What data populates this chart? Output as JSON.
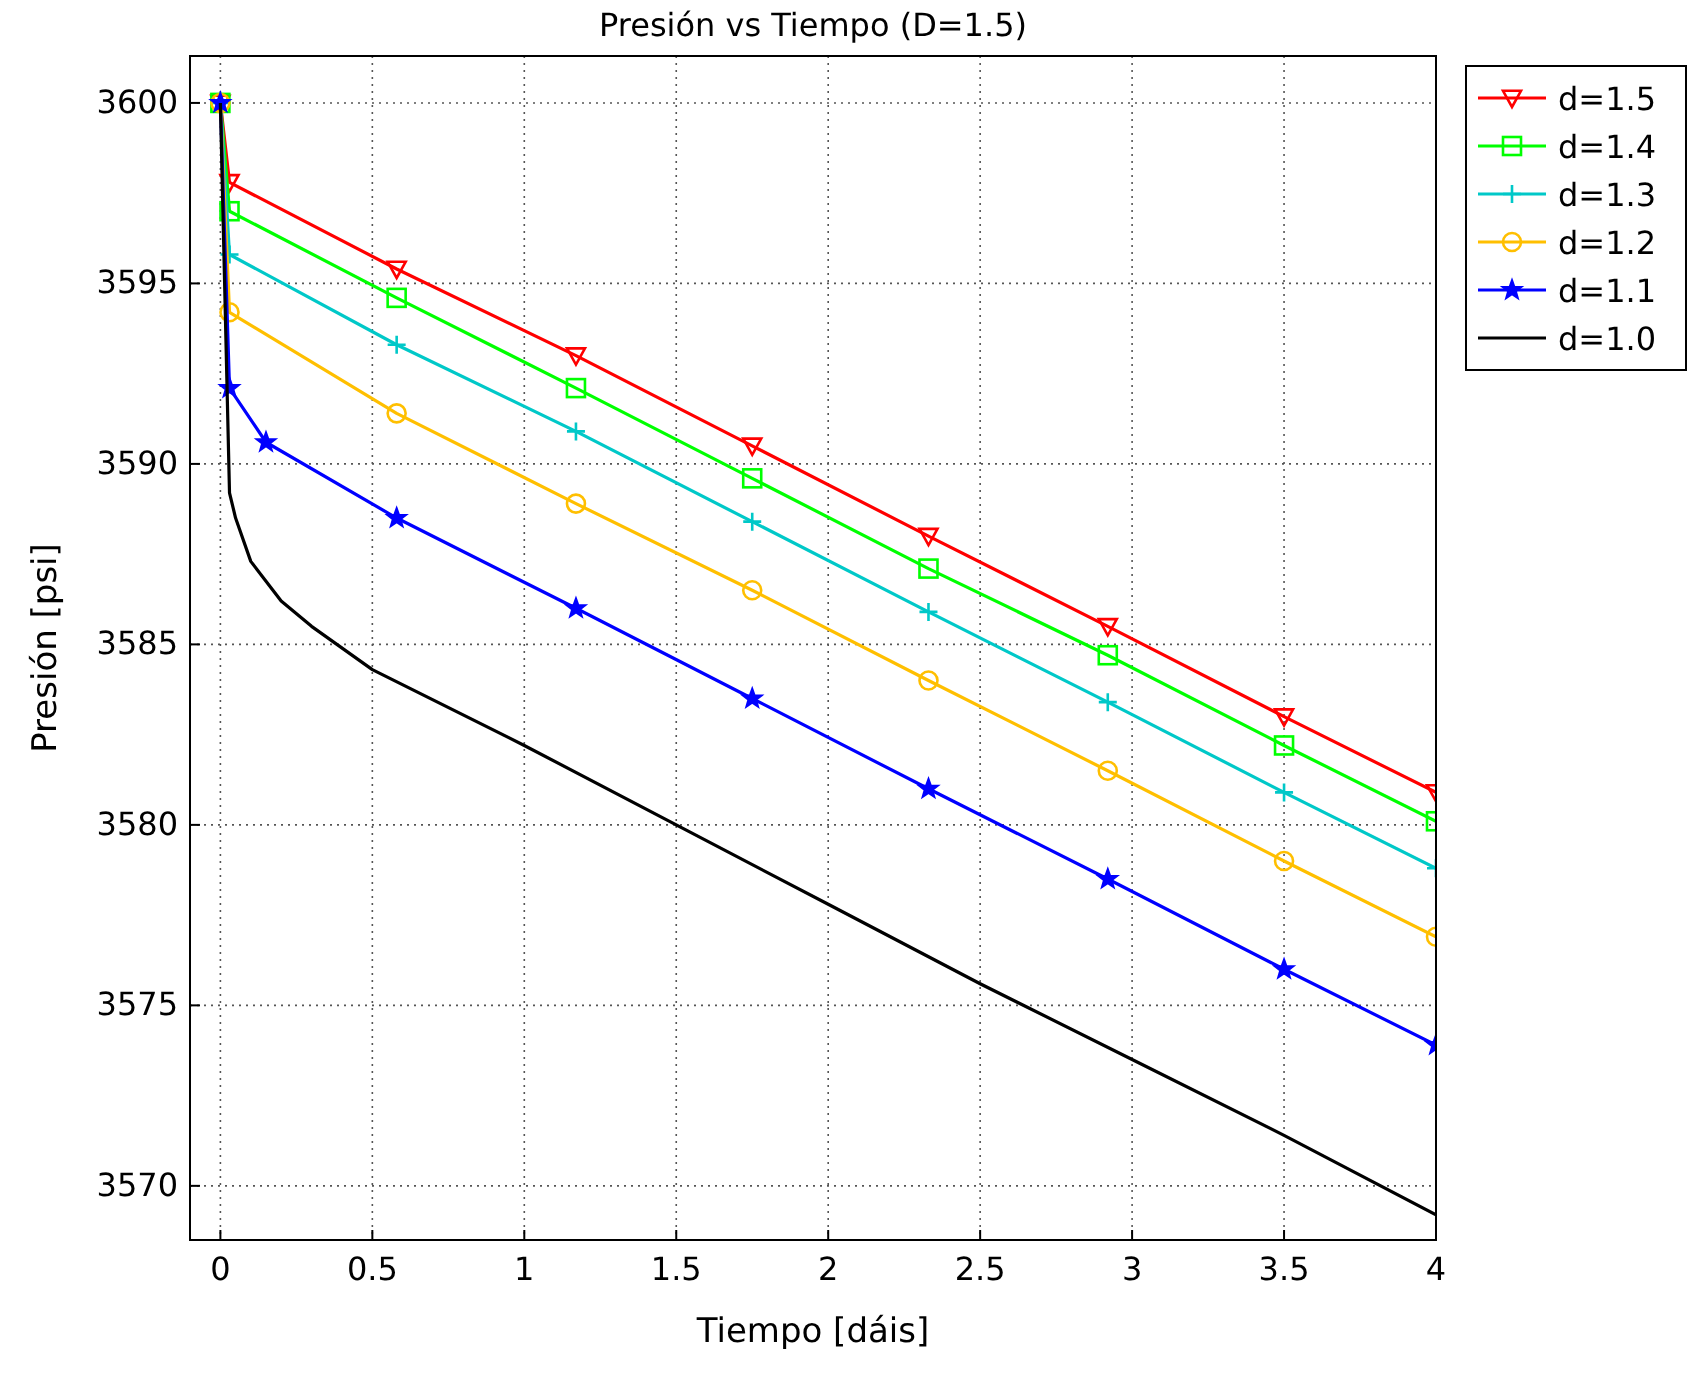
{
  "chart_data": {
    "type": "line",
    "title": "Presión vs Tiempo (D=1.5)",
    "xlabel": "Tiempo [dáis]",
    "ylabel": "Presión [psi]",
    "xlim": [
      -0.1,
      4
    ],
    "ylim": [
      3568.5,
      3601.3
    ],
    "xticks": [
      0,
      0.5,
      1,
      1.5,
      2,
      2.5,
      3,
      3.5,
      4
    ],
    "yticks": [
      3570,
      3575,
      3580,
      3585,
      3590,
      3595,
      3600
    ],
    "grid": true,
    "legend": "top right",
    "line_style": "solid",
    "series": [
      {
        "name": "d=1.5",
        "color": "#ff0000",
        "marker": "triangle",
        "x": [
          0,
          0.03,
          0.58,
          1.17,
          1.75,
          2.33,
          2.92,
          3.5,
          4
        ],
        "values": [
          3600,
          3597.8,
          3595.4,
          3593.0,
          3590.5,
          3588.0,
          3585.5,
          3583.0,
          3580.9
        ]
      },
      {
        "name": "d=1.4",
        "color": "#00ff00",
        "marker": "square",
        "x": [
          0,
          0.03,
          0.58,
          1.17,
          1.75,
          2.33,
          2.92,
          3.5,
          4
        ],
        "values": [
          3600,
          3597.0,
          3594.6,
          3592.1,
          3589.6,
          3587.1,
          3584.7,
          3582.2,
          3580.1
        ]
      },
      {
        "name": "d=1.3",
        "color": "#00c8c8",
        "marker": "cross",
        "x": [
          0,
          0.03,
          0.58,
          1.17,
          1.75,
          2.33,
          2.92,
          3.5,
          4
        ],
        "values": [
          3600,
          3595.8,
          3593.3,
          3590.9,
          3588.4,
          3585.9,
          3583.4,
          3580.9,
          3578.8
        ]
      },
      {
        "name": "d=1.2",
        "color": "#ffbf00",
        "marker": "circle",
        "x": [
          0,
          0.03,
          0.58,
          1.17,
          1.75,
          2.33,
          2.92,
          3.5,
          4
        ],
        "values": [
          3600,
          3594.2,
          3591.4,
          3588.9,
          3586.5,
          3584.0,
          3581.5,
          3579.0,
          3576.9
        ]
      },
      {
        "name": "d=1.1",
        "color": "#0000ff",
        "marker": "star",
        "x": [
          0,
          0.03,
          0.15,
          0.58,
          1.17,
          1.75,
          2.33,
          2.92,
          3.5,
          4
        ],
        "values": [
          3600,
          3592.1,
          3590.6,
          3588.5,
          3586.0,
          3583.5,
          3581.0,
          3578.5,
          3576.0,
          3573.9
        ]
      },
      {
        "name": "d=1.0",
        "color": "#000000",
        "marker": "none",
        "x": [
          0,
          0.03,
          0.05,
          0.1,
          0.2,
          0.3,
          0.5,
          1,
          1.5,
          2,
          2.5,
          3,
          3.5,
          4
        ],
        "values": [
          3600,
          3589.2,
          3588.5,
          3587.3,
          3586.2,
          3585.5,
          3584.3,
          3582.2,
          3580.0,
          3577.8,
          3575.6,
          3573.5,
          3571.4,
          3569.2
        ]
      }
    ]
  }
}
